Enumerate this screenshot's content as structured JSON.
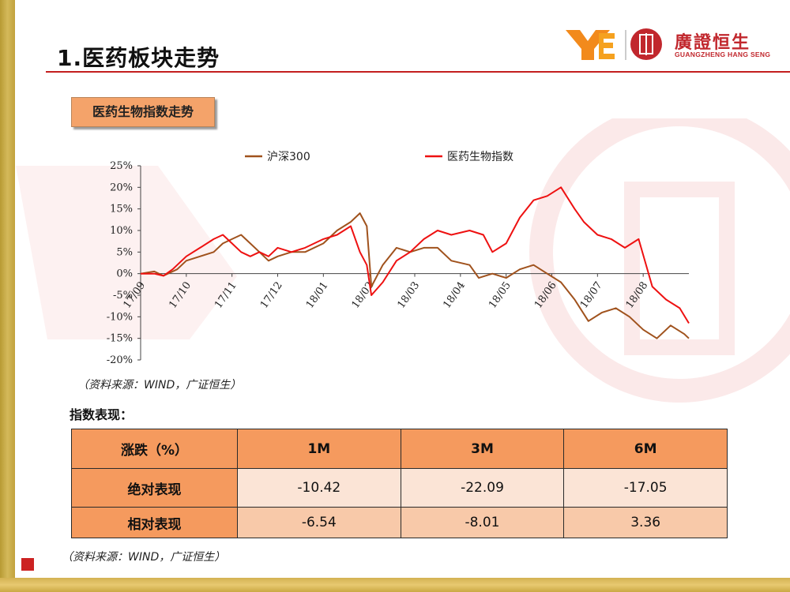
{
  "page": {
    "title": "1.医药板块走势",
    "section_label": "医药生物指数走势",
    "chart_source": "（资料来源：WIND，广证恒生）",
    "table_heading": "指数表现：",
    "table_source": "（资料来源：WIND，广证恒生）"
  },
  "logo": {
    "mark": "YE",
    "name_cn": "廣證恒生",
    "name_en": "GUANGZHENG HANG SENG"
  },
  "colors": {
    "hs300": "#a0521d",
    "pharma": "#ee1111",
    "accent_red": "#c41e1e",
    "header_orange": "#f59a5e"
  },
  "chart_data": {
    "type": "line",
    "x": [
      "17/09",
      "17/10",
      "17/11",
      "17/12",
      "18/01",
      "18/02",
      "18/03",
      "18/04",
      "18/05",
      "18/06",
      "18/07",
      "18/08"
    ],
    "ylim": [
      -20,
      25
    ],
    "yticks": [
      25,
      20,
      15,
      10,
      5,
      0,
      -5,
      -10,
      -15,
      -20
    ],
    "ytick_labels": [
      "25%",
      "20%",
      "15%",
      "10%",
      "5%",
      "0%",
      "-5%",
      "-10%",
      "-15%",
      "-20%"
    ],
    "legend_position": "top",
    "grid": false,
    "series": [
      {
        "name": "沪深300",
        "color": "#a0521d",
        "points": [
          [
            0,
            0
          ],
          [
            0.3,
            0.5
          ],
          [
            0.5,
            -0.5
          ],
          [
            0.8,
            1
          ],
          [
            1,
            3
          ],
          [
            1.3,
            4
          ],
          [
            1.6,
            5
          ],
          [
            1.8,
            7
          ],
          [
            2,
            8
          ],
          [
            2.2,
            9
          ],
          [
            2.4,
            7
          ],
          [
            2.6,
            5
          ],
          [
            2.8,
            3
          ],
          [
            3,
            4
          ],
          [
            3.3,
            5
          ],
          [
            3.6,
            5
          ],
          [
            4,
            7
          ],
          [
            4.3,
            10
          ],
          [
            4.6,
            12
          ],
          [
            4.8,
            14
          ],
          [
            4.95,
            11
          ],
          [
            5.05,
            -3
          ],
          [
            5.3,
            2
          ],
          [
            5.6,
            6
          ],
          [
            5.9,
            5
          ],
          [
            6.2,
            6
          ],
          [
            6.5,
            6
          ],
          [
            6.8,
            3
          ],
          [
            7.2,
            2
          ],
          [
            7.4,
            -1
          ],
          [
            7.7,
            0
          ],
          [
            8,
            -1
          ],
          [
            8.3,
            1
          ],
          [
            8.6,
            2
          ],
          [
            8.9,
            0
          ],
          [
            9.2,
            -2
          ],
          [
            9.5,
            -6
          ],
          [
            9.8,
            -11
          ],
          [
            10.1,
            -9
          ],
          [
            10.4,
            -8
          ],
          [
            10.7,
            -10
          ],
          [
            11,
            -13
          ],
          [
            11.3,
            -15
          ],
          [
            11.6,
            -12
          ],
          [
            11.9,
            -14
          ],
          [
            12,
            -15
          ]
        ]
      },
      {
        "name": "医药生物指数",
        "color": "#ee1111",
        "points": [
          [
            0,
            0
          ],
          [
            0.3,
            0
          ],
          [
            0.5,
            -0.5
          ],
          [
            0.7,
            1
          ],
          [
            1,
            4
          ],
          [
            1.3,
            6
          ],
          [
            1.6,
            8
          ],
          [
            1.8,
            9
          ],
          [
            2,
            7
          ],
          [
            2.2,
            5
          ],
          [
            2.4,
            4
          ],
          [
            2.6,
            5
          ],
          [
            2.8,
            4
          ],
          [
            3,
            6
          ],
          [
            3.3,
            5
          ],
          [
            3.6,
            6
          ],
          [
            4,
            8
          ],
          [
            4.3,
            9
          ],
          [
            4.6,
            11
          ],
          [
            4.8,
            5
          ],
          [
            4.95,
            2
          ],
          [
            5.05,
            -5
          ],
          [
            5.3,
            -2
          ],
          [
            5.6,
            3
          ],
          [
            5.9,
            5
          ],
          [
            6.2,
            8
          ],
          [
            6.5,
            10
          ],
          [
            6.8,
            9
          ],
          [
            7.2,
            10
          ],
          [
            7.5,
            9
          ],
          [
            7.7,
            5
          ],
          [
            8,
            7
          ],
          [
            8.3,
            13
          ],
          [
            8.6,
            17
          ],
          [
            8.9,
            18
          ],
          [
            9.2,
            20
          ],
          [
            9.5,
            15
          ],
          [
            9.7,
            12
          ],
          [
            10,
            9
          ],
          [
            10.3,
            8
          ],
          [
            10.6,
            6
          ],
          [
            10.9,
            8
          ],
          [
            11.2,
            -3
          ],
          [
            11.5,
            -6
          ],
          [
            11.8,
            -8
          ],
          [
            12,
            -11.5
          ]
        ]
      }
    ]
  },
  "table": {
    "header": [
      "涨跌（%）",
      "1M",
      "3M",
      "6M"
    ],
    "rows": [
      {
        "label": "绝对表现",
        "values": [
          "-10.42",
          "-22.09",
          "-17.05"
        ]
      },
      {
        "label": "相对表现",
        "values": [
          "-6.54",
          "-8.01",
          "3.36"
        ]
      }
    ]
  }
}
